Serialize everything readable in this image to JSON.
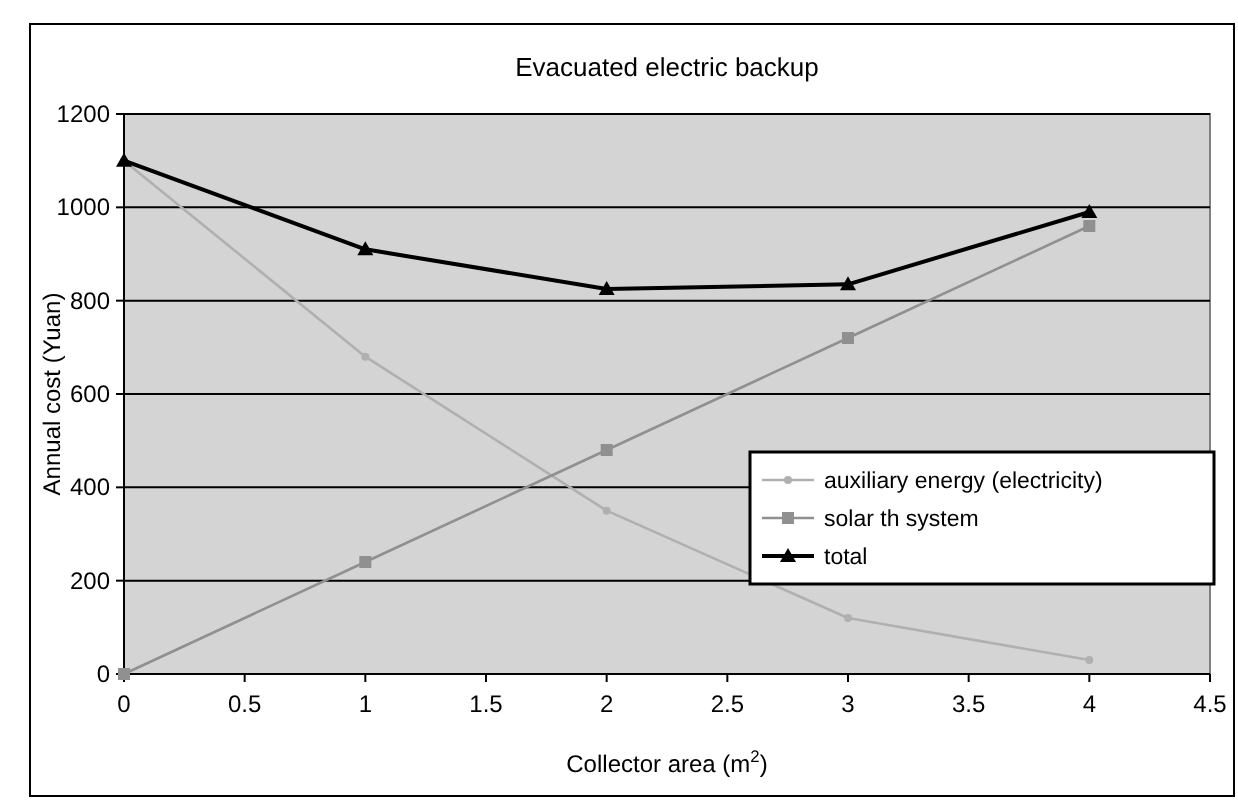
{
  "chart_data": {
    "type": "line",
    "title": "Evacuated electric backup",
    "xlabel": "Collector area (m$^{2}$)",
    "ylabel": "Annual cost (Yuan)",
    "x": [
      0,
      1,
      2,
      3,
      4
    ],
    "series": [
      {
        "name": "auxiliary energy (electricity)",
        "color": "#b0b0b0",
        "marker": "circle",
        "values": [
          1100,
          680,
          350,
          120,
          30
        ]
      },
      {
        "name": "solar th system",
        "color": "#909090",
        "marker": "square",
        "values": [
          0,
          240,
          480,
          720,
          960
        ]
      },
      {
        "name": "total",
        "color": "#000000",
        "marker": "triangle",
        "values": [
          1100,
          910,
          825,
          835,
          990
        ]
      }
    ],
    "xlim": [
      0,
      4.5
    ],
    "xticks": [
      0,
      0.5,
      1,
      1.5,
      2,
      2.5,
      3,
      3.5,
      4,
      4.5
    ],
    "ylim": [
      0,
      1200
    ],
    "yticks": [
      0,
      200,
      400,
      600,
      800,
      1000,
      1200
    ],
    "grid": "y",
    "legend": "right",
    "line_style": "solid"
  }
}
